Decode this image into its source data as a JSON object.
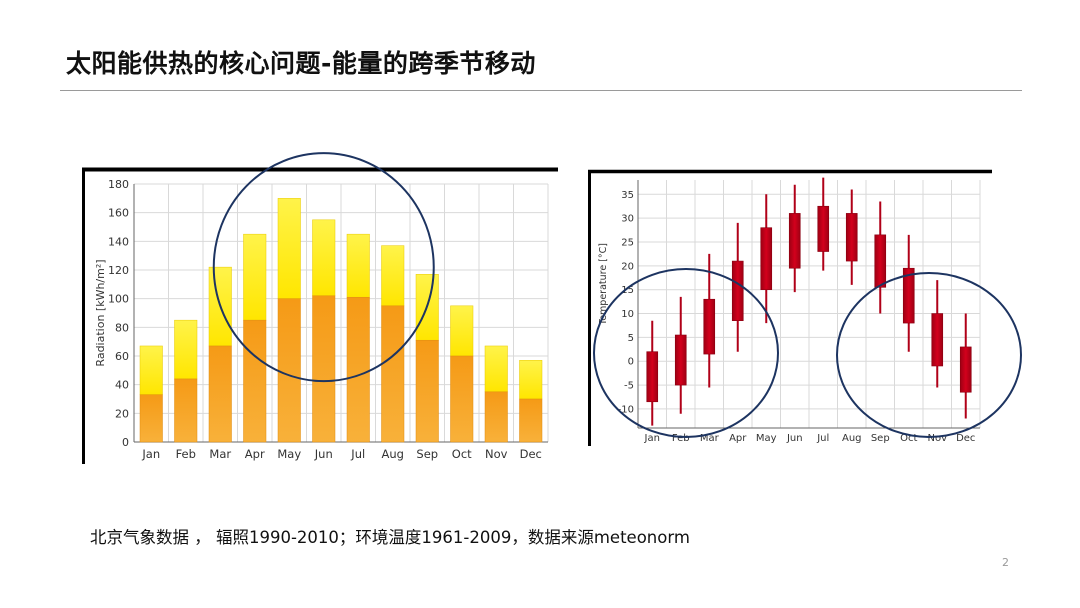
{
  "slide": {
    "title": "太阳能供热的核心问题-能量的跨季节移动",
    "caption": "北京气象数据 ， 辐照1990-2010；环境温度1961-2009，数据来源meteonorm",
    "page_number": "2"
  },
  "colors": {
    "bar_upper": "#ffe600",
    "bar_lower": "#f7a21b",
    "candle_red": "#d3001c",
    "circle_stroke": "#1d3461",
    "grid": "#d9d9d9"
  },
  "chart_data": [
    {
      "type": "bar",
      "stacked": true,
      "categories": [
        "Jan",
        "Feb",
        "Mar",
        "Apr",
        "May",
        "Jun",
        "Jul",
        "Aug",
        "Sep",
        "Oct",
        "Nov",
        "Dec"
      ],
      "series": [
        {
          "values": [
            33,
            44,
            67,
            85,
            100,
            102,
            101,
            95,
            71,
            60,
            35,
            30
          ]
        },
        {
          "values": [
            34,
            41,
            55,
            60,
            70,
            53,
            44,
            42,
            46,
            35,
            32,
            27
          ]
        }
      ],
      "totals": [
        67,
        85,
        122,
        145,
        170,
        155,
        145,
        137,
        117,
        95,
        67,
        57
      ],
      "ylabel": "Radiation [kWh/m²]",
      "ylim": [
        0,
        180
      ],
      "yticks": [
        0,
        20,
        40,
        60,
        80,
        100,
        120,
        140,
        160,
        180
      ],
      "grid": true,
      "annotations": [
        {
          "shape": "circle",
          "highlight_months": [
            "Apr",
            "May",
            "Jun",
            "Jul",
            "Aug"
          ]
        }
      ]
    },
    {
      "type": "candlestick",
      "categories": [
        "Jan",
        "Feb",
        "Mar",
        "Apr",
        "May",
        "Jun",
        "Jul",
        "Aug",
        "Sep",
        "Oct",
        "Nov",
        "Dec"
      ],
      "low": [
        -13.5,
        -11,
        -5.5,
        2,
        8,
        14.5,
        19,
        16,
        10,
        2,
        -5.5,
        -12
      ],
      "q1": [
        -8.5,
        -5,
        1.5,
        8.5,
        15,
        19.5,
        23,
        21,
        15.5,
        8,
        -1,
        -6.5
      ],
      "q3": [
        2,
        5.5,
        13,
        21,
        28,
        31,
        32.5,
        31,
        26.5,
        19.5,
        10,
        3
      ],
      "high": [
        8.5,
        13.5,
        22.5,
        29,
        35,
        37,
        38.5,
        36,
        33.5,
        26.5,
        17,
        10
      ],
      "ylabel": "Temperature [°C]",
      "ylim": [
        -14,
        38
      ],
      "yticks": [
        -10,
        -5,
        0,
        5,
        10,
        15,
        20,
        25,
        30,
        35
      ],
      "grid": true,
      "annotations": [
        {
          "shape": "circle",
          "highlight_months": [
            "Jan",
            "Feb",
            "Mar",
            "Apr"
          ]
        },
        {
          "shape": "circle",
          "highlight_months": [
            "Sep",
            "Oct",
            "Nov",
            "Dec"
          ]
        }
      ]
    }
  ]
}
